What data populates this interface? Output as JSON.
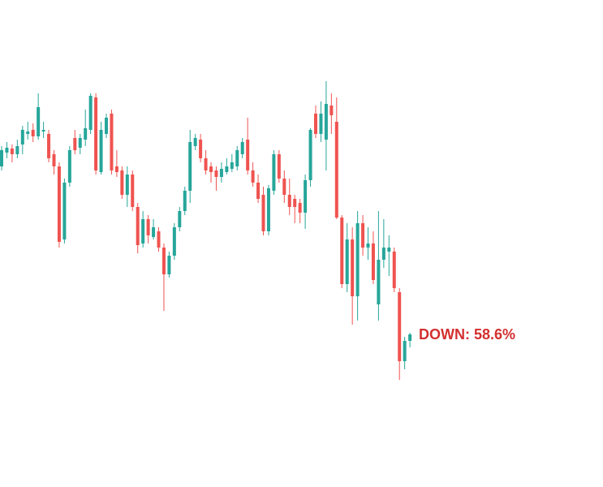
{
  "chart_data": {
    "type": "candlestick",
    "up_color": "#26a69a",
    "down_color": "#ef5350",
    "ylim": [
      0,
      600
    ],
    "open": [
      395,
      412,
      417,
      410,
      422,
      435,
      440,
      432,
      438,
      435,
      410,
      395,
      305,
      375,
      430,
      418,
      428,
      440,
      480,
      388,
      435,
      460,
      395,
      390,
      360,
      385,
      345,
      300,
      330,
      308,
      315,
      295,
      262,
      285,
      320,
      340,
      365,
      420,
      428,
      405,
      395,
      390,
      382,
      388,
      392,
      395,
      410,
      428,
      390,
      375,
      360,
      315,
      365,
      410,
      380,
      360,
      355,
      350,
      338,
      378,
      460,
      435,
      428,
      470,
      450,
      332,
      250,
      305,
      235,
      325,
      295,
      300,
      225,
      280,
      290,
      290,
      240,
      155,
      180
    ],
    "close": [
      415,
      418,
      410,
      420,
      440,
      438,
      432,
      468,
      440,
      405,
      395,
      302,
      375,
      415,
      415,
      430,
      442,
      482,
      390,
      440,
      455,
      390,
      388,
      360,
      385,
      345,
      298,
      330,
      310,
      320,
      295,
      262,
      285,
      320,
      340,
      365,
      425,
      430,
      405,
      390,
      388,
      382,
      392,
      395,
      400,
      415,
      425,
      390,
      375,
      355,
      315,
      368,
      410,
      380,
      360,
      345,
      345,
      338,
      378,
      440,
      435,
      460,
      472,
      458,
      332,
      250,
      305,
      235,
      325,
      295,
      300,
      255,
      280,
      295,
      295,
      245,
      155,
      180,
      188
    ],
    "high": [
      420,
      425,
      422,
      428,
      445,
      450,
      448,
      485,
      450,
      440,
      415,
      400,
      380,
      420,
      440,
      435,
      465,
      485,
      485,
      450,
      460,
      465,
      415,
      395,
      395,
      390,
      350,
      340,
      335,
      330,
      320,
      300,
      290,
      325,
      345,
      370,
      440,
      435,
      435,
      415,
      400,
      395,
      400,
      405,
      410,
      420,
      430,
      455,
      400,
      385,
      370,
      372,
      415,
      415,
      390,
      380,
      360,
      355,
      385,
      442,
      470,
      475,
      500,
      485,
      480,
      335,
      325,
      320,
      340,
      335,
      320,
      315,
      340,
      330,
      310,
      295,
      245,
      185,
      190
    ],
    "low": [
      390,
      405,
      400,
      405,
      410,
      428,
      425,
      428,
      430,
      400,
      385,
      295,
      300,
      370,
      410,
      410,
      420,
      435,
      385,
      385,
      430,
      385,
      382,
      355,
      345,
      340,
      288,
      295,
      300,
      305,
      290,
      217,
      258,
      280,
      315,
      335,
      350,
      415,
      400,
      385,
      375,
      365,
      375,
      385,
      388,
      390,
      405,
      385,
      370,
      350,
      310,
      310,
      360,
      375,
      350,
      335,
      325,
      325,
      318,
      370,
      430,
      425,
      390,
      435,
      330,
      245,
      240,
      200,
      205,
      285,
      280,
      250,
      205,
      270,
      260,
      240,
      132,
      145,
      172
    ],
    "annotation": "DOWN: 58.6%",
    "annotation_color": "#d32f2f"
  }
}
